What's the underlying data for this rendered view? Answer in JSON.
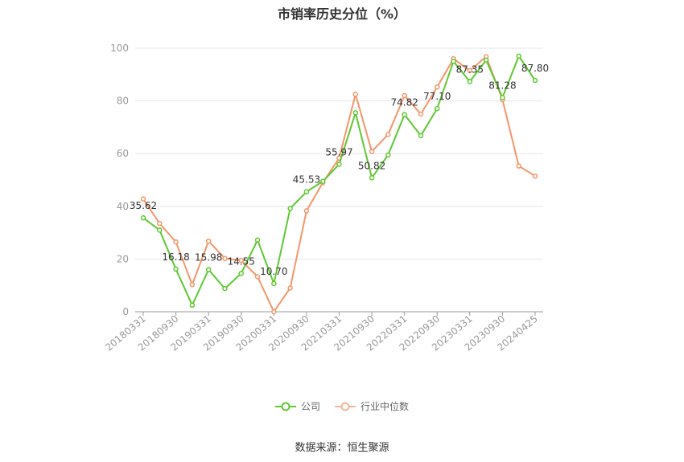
{
  "chart_data": {
    "type": "line",
    "title": "市销率历史分位（%）",
    "xlabel": "",
    "ylabel": "",
    "ylim": [
      0,
      100
    ],
    "yticks": [
      0,
      20,
      40,
      60,
      80,
      100
    ],
    "grid": true,
    "legend_position": "bottom",
    "x": [
      "20180331",
      "20180630",
      "20180930",
      "20181231",
      "20190331",
      "20190630",
      "20190930",
      "20191231",
      "20200331",
      "20200630",
      "20200930",
      "20201231",
      "20210331",
      "20210630",
      "20210930",
      "20211231",
      "20220331",
      "20220630",
      "20220930",
      "20221231",
      "20230331",
      "20230630",
      "20230930",
      "20231231",
      "20240425"
    ],
    "x_tick_labels": [
      "20180331",
      "20180930",
      "20190331",
      "20190930",
      "20200331",
      "20200930",
      "20210331",
      "20210930",
      "20220331",
      "20220930",
      "20230331",
      "20230930",
      "20240425"
    ],
    "series": [
      {
        "name": "公司",
        "color": "#5fc832",
        "values": [
          35.62,
          31.0,
          16.18,
          2.5,
          15.98,
          8.8,
          14.55,
          27.2,
          10.7,
          39.2,
          45.53,
          49.5,
          55.97,
          75.5,
          50.82,
          59.5,
          74.82,
          66.8,
          77.1,
          95.0,
          87.35,
          95.5,
          81.28,
          97.0,
          87.8
        ],
        "labels": {
          "0": "35.62",
          "2": "16.18",
          "4": "15.98",
          "6": "14.55",
          "8": "10.70",
          "10": "45.53",
          "12": "55.97",
          "14": "50.82",
          "16": "74.82",
          "18": "77.10",
          "20": "87.35",
          "22": "81.28",
          "24": "87.80"
        }
      },
      {
        "name": "行业中位数",
        "color": "#f5956a",
        "values": [
          42.8,
          33.5,
          26.5,
          10.3,
          26.8,
          20.2,
          19.5,
          13.3,
          0.0,
          9.0,
          38.3,
          49.0,
          58.3,
          82.5,
          60.8,
          67.3,
          82.0,
          75.0,
          85.3,
          96.0,
          91.5,
          96.8,
          80.5,
          55.3,
          51.5
        ]
      }
    ]
  },
  "source_note": "数据来源：恒生聚源"
}
